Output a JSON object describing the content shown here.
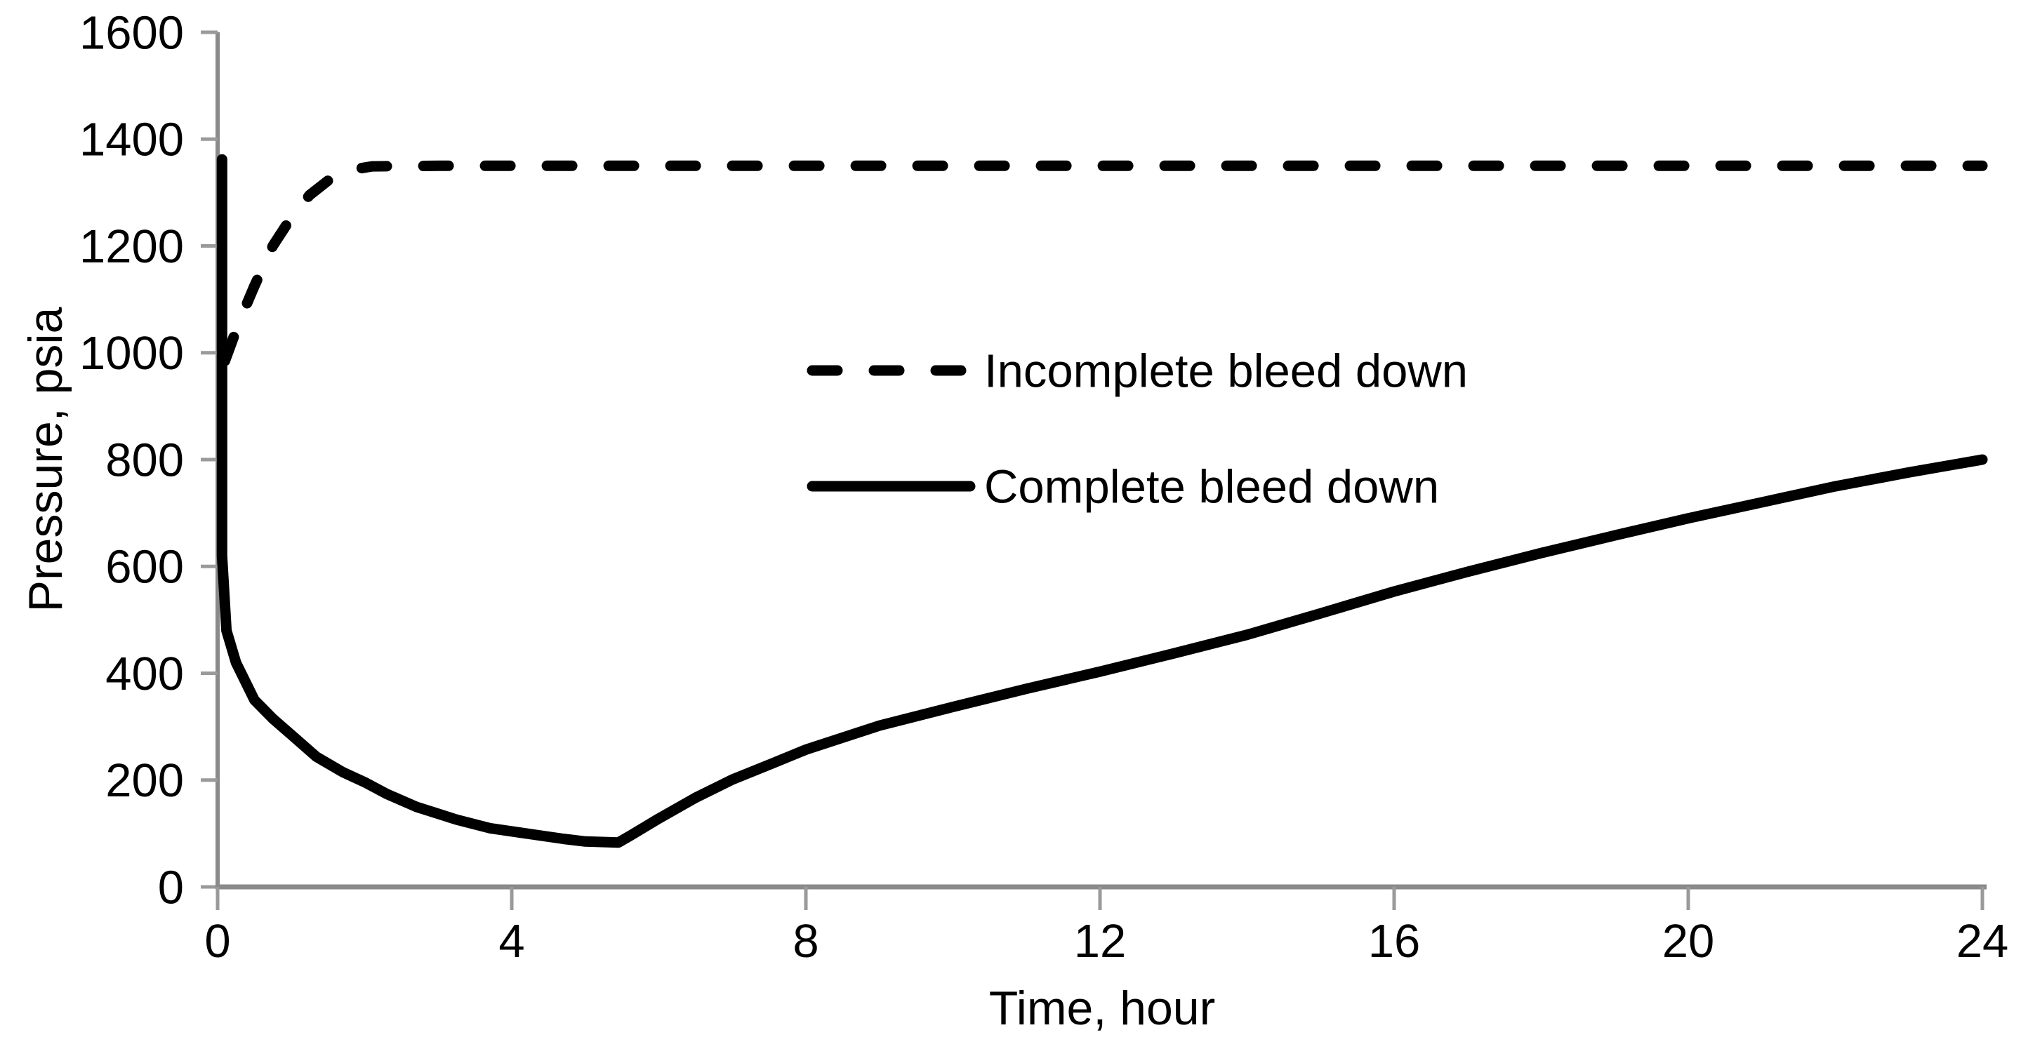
{
  "figure": {
    "background_color": "#ffffff",
    "axis_color": "#8a8a8a",
    "tick_color": "#9a9a9a",
    "curve_color": "#000000"
  },
  "chart_data": {
    "type": "line",
    "title": "",
    "xlabel": "Time, hour",
    "ylabel": "Pressure, psia",
    "xlim": [
      0,
      24
    ],
    "ylim": [
      0,
      1600
    ],
    "xticks": [
      0,
      4,
      8,
      12,
      16,
      20,
      24
    ],
    "yticks": [
      0,
      200,
      400,
      600,
      800,
      1000,
      1200,
      1400,
      1600
    ],
    "grid": false,
    "legend_position": "upper-center-inside",
    "series": [
      {
        "name": "Incomplete bleed down",
        "style": "dashed",
        "color": "#000000",
        "points": [
          [
            0.1,
            985
          ],
          [
            0.3,
            1060
          ],
          [
            0.5,
            1125
          ],
          [
            0.75,
            1200
          ],
          [
            1.0,
            1253
          ],
          [
            1.25,
            1295
          ],
          [
            1.5,
            1322
          ],
          [
            1.8,
            1342
          ],
          [
            2.1,
            1349
          ],
          [
            3.0,
            1350
          ],
          [
            24.0,
            1350
          ]
        ]
      },
      {
        "name": "Complete bleed down",
        "style": "solid",
        "color": "#000000",
        "points": [
          [
            0.06,
            1362
          ],
          [
            0.06,
            620
          ],
          [
            0.12,
            480
          ],
          [
            0.25,
            420
          ],
          [
            0.5,
            350
          ],
          [
            0.75,
            315
          ],
          [
            1.0,
            285
          ],
          [
            1.34,
            244
          ],
          [
            1.7,
            215
          ],
          [
            2.0,
            196
          ],
          [
            2.3,
            174
          ],
          [
            2.7,
            150
          ],
          [
            3.25,
            126
          ],
          [
            3.7,
            110
          ],
          [
            4.2,
            100
          ],
          [
            4.7,
            90
          ],
          [
            5.0,
            85
          ],
          [
            5.45,
            83
          ],
          [
            5.6,
            95
          ],
          [
            6.0,
            128
          ],
          [
            6.5,
            167
          ],
          [
            7.0,
            201
          ],
          [
            7.54,
            231
          ],
          [
            8.0,
            257
          ],
          [
            9.0,
            302
          ],
          [
            10.0,
            337
          ],
          [
            11.0,
            371
          ],
          [
            12.0,
            403
          ],
          [
            13.0,
            437
          ],
          [
            14.0,
            472
          ],
          [
            15.0,
            512
          ],
          [
            16.0,
            553
          ],
          [
            17.0,
            590
          ],
          [
            18.0,
            625
          ],
          [
            19.0,
            658
          ],
          [
            20.0,
            690
          ],
          [
            21.0,
            720
          ],
          [
            22.0,
            750
          ],
          [
            23.0,
            776
          ],
          [
            24.0,
            800
          ]
        ]
      }
    ]
  }
}
